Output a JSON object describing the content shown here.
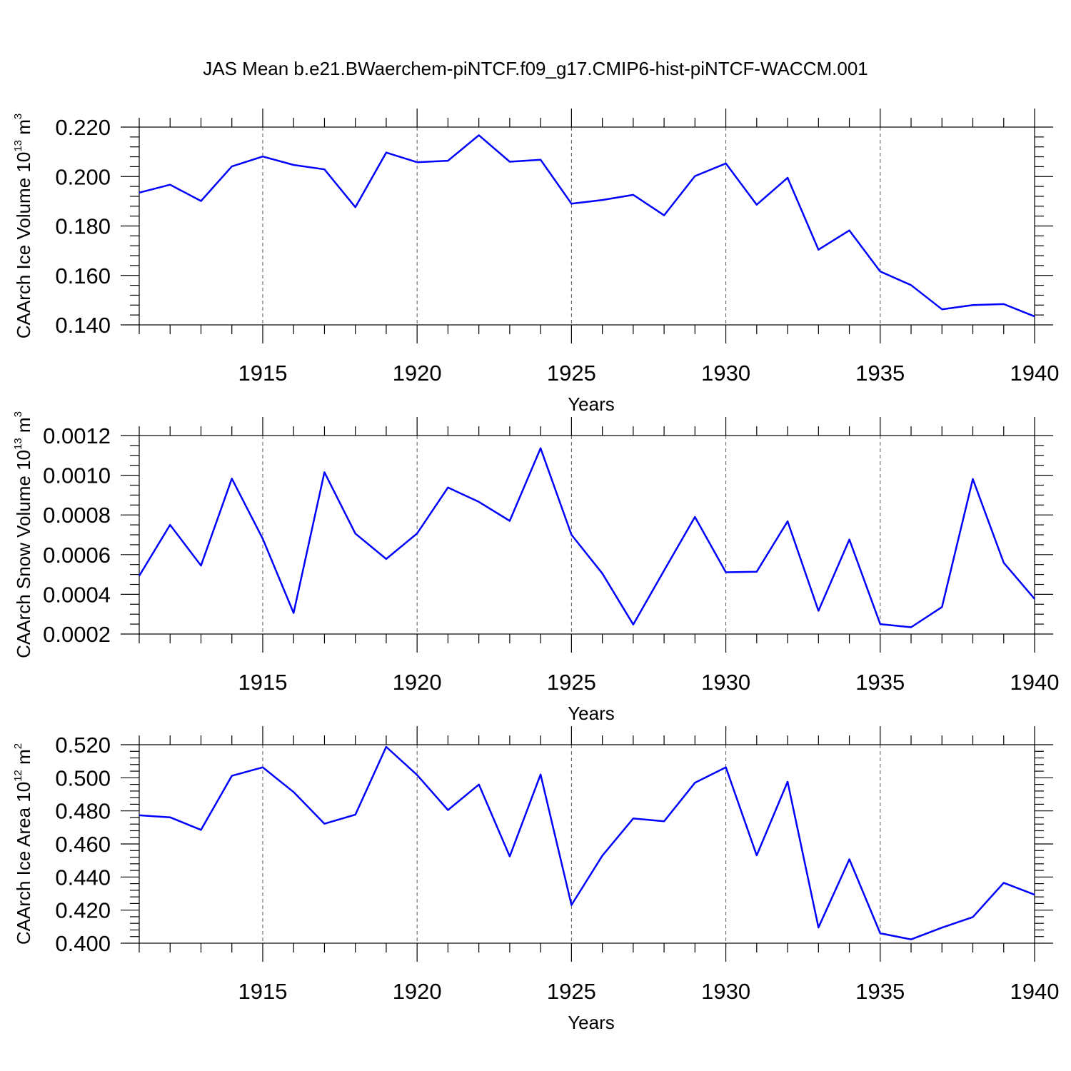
{
  "title": "JAS Mean b.e21.BWaerchem-piNTCF.f09_g17.CMIP6-hist-piNTCF-WACCM.001",
  "colors": {
    "line": "#0000ff",
    "axis": "#000000",
    "grid": "#000000"
  },
  "chart_data": [
    {
      "type": "line",
      "xlabel": "Years",
      "ylabel": {
        "prefix": "CAArch Ice Volume 10",
        "exp": "13",
        "unit": " m",
        "unit_exp": "3"
      },
      "xlim": [
        1911,
        1940
      ],
      "ylim": [
        0.14,
        0.22
      ],
      "x_ticks": [
        1915,
        1920,
        1925,
        1930,
        1935,
        1940
      ],
      "y_ticks": [
        "0.140",
        "0.160",
        "0.180",
        "0.200",
        "0.220"
      ],
      "grid_x": true,
      "x": [
        1911,
        1912,
        1913,
        1914,
        1915,
        1916,
        1917,
        1918,
        1919,
        1920,
        1921,
        1922,
        1923,
        1924,
        1925,
        1926,
        1927,
        1928,
        1929,
        1930,
        1931,
        1932,
        1933,
        1934,
        1935,
        1936,
        1937,
        1938,
        1939,
        1940
      ],
      "series": [
        {
          "values": [
            0.1935,
            0.1967,
            0.1901,
            0.2041,
            0.2081,
            0.2047,
            0.2029,
            0.1876,
            0.2097,
            0.2058,
            0.2064,
            0.2167,
            0.206,
            0.2068,
            0.189,
            0.1905,
            0.1926,
            0.1843,
            0.2002,
            0.2053,
            0.1886,
            0.1995,
            0.1704,
            0.1782,
            0.1616,
            0.1561,
            0.1463,
            0.148,
            0.1484,
            0.1434
          ]
        }
      ]
    },
    {
      "type": "line",
      "xlabel": "Years",
      "ylabel": {
        "prefix": "CAArch Snow Volume 10",
        "exp": "13",
        "unit": " m",
        "unit_exp": "3"
      },
      "xlim": [
        1911,
        1940
      ],
      "ylim": [
        0.0002,
        0.0012
      ],
      "x_ticks": [
        1915,
        1920,
        1925,
        1930,
        1935,
        1940
      ],
      "y_ticks": [
        "0.0002",
        "0.0004",
        "0.0006",
        "0.0008",
        "0.0010",
        "0.0012"
      ],
      "grid_x": true,
      "x": [
        1911,
        1912,
        1913,
        1914,
        1915,
        1916,
        1917,
        1918,
        1919,
        1920,
        1921,
        1922,
        1923,
        1924,
        1925,
        1926,
        1927,
        1928,
        1929,
        1930,
        1931,
        1932,
        1933,
        1934,
        1935,
        1936,
        1937,
        1938,
        1939,
        1940
      ],
      "series": [
        {
          "values": [
            0.000493,
            0.00075,
            0.000545,
            0.000983,
            0.00068,
            0.000306,
            0.001015,
            0.000706,
            0.000578,
            0.000707,
            0.000938,
            0.000866,
            0.00077,
            0.001136,
            0.0007,
            0.000505,
            0.000248,
            0.00052,
            0.00079,
            0.000511,
            0.000514,
            0.000768,
            0.000317,
            0.000676,
            0.00025,
            0.000234,
            0.000336,
            0.000981,
            0.000559,
            0.000377
          ]
        }
      ]
    },
    {
      "type": "line",
      "xlabel": "Years",
      "ylabel": {
        "prefix": "CAArch Ice Area 10",
        "exp": "12",
        "unit": " m",
        "unit_exp": "2"
      },
      "xlim": [
        1911,
        1940
      ],
      "ylim": [
        0.4,
        0.52
      ],
      "x_ticks": [
        1915,
        1920,
        1925,
        1930,
        1935,
        1940
      ],
      "y_ticks": [
        "0.400",
        "0.420",
        "0.440",
        "0.460",
        "0.480",
        "0.500",
        "0.520"
      ],
      "grid_x": true,
      "x": [
        1911,
        1912,
        1913,
        1914,
        1915,
        1916,
        1917,
        1918,
        1919,
        1920,
        1921,
        1922,
        1923,
        1924,
        1925,
        1926,
        1927,
        1928,
        1929,
        1930,
        1931,
        1932,
        1933,
        1934,
        1935,
        1936,
        1937,
        1938,
        1939,
        1940
      ],
      "series": [
        {
          "values": [
            0.4773,
            0.4761,
            0.4685,
            0.5012,
            0.5063,
            0.4914,
            0.4722,
            0.4777,
            0.5187,
            0.5017,
            0.4805,
            0.4959,
            0.4525,
            0.502,
            0.4231,
            0.4529,
            0.4754,
            0.4737,
            0.497,
            0.5063,
            0.4531,
            0.4976,
            0.4095,
            0.4507,
            0.406,
            0.4023,
            0.4094,
            0.4158,
            0.4365,
            0.4293
          ]
        }
      ]
    }
  ]
}
